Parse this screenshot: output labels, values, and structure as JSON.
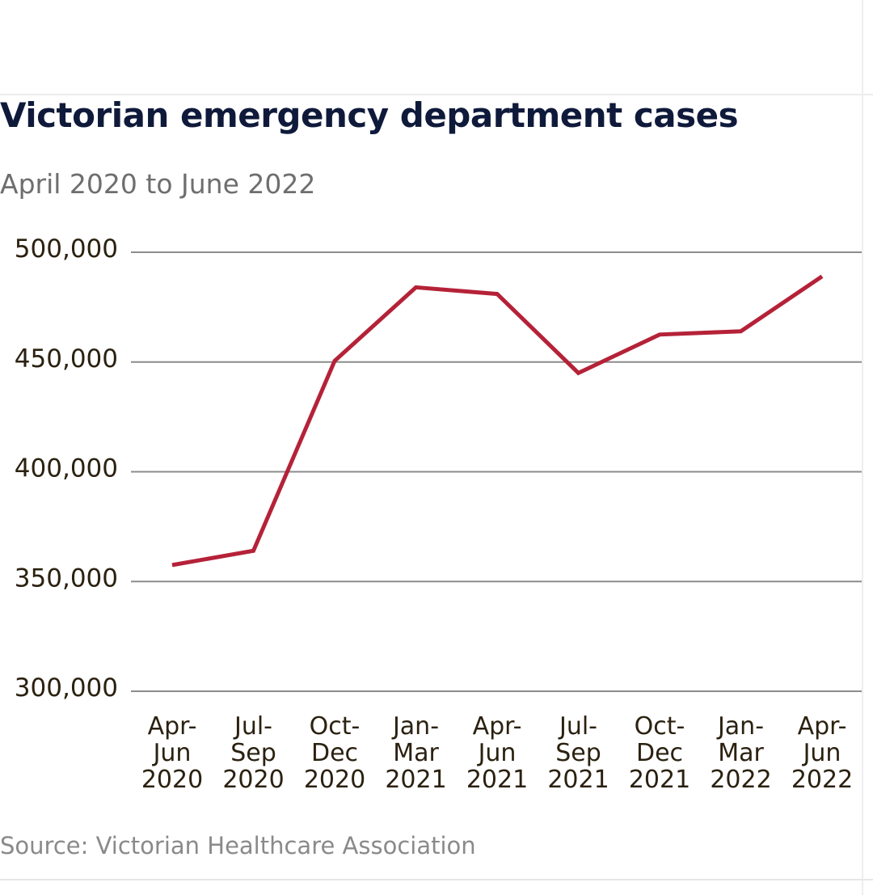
{
  "header": {
    "title": "Victorian emergency department cases",
    "subtitle": "April 2020 to June 2022"
  },
  "footer": {
    "source": "Source: Victorian Healthcare Association"
  },
  "colors": {
    "line": "#b52238",
    "grid": "#8c8c8c",
    "title": "#0f1a3b"
  },
  "chart_data": {
    "type": "line",
    "title": "Victorian emergency department cases",
    "subtitle": "April 2020 to June 2022",
    "xlabel": "",
    "ylabel": "",
    "ylim": [
      300000,
      500000
    ],
    "yticks": [
      500000,
      450000,
      400000,
      350000,
      300000
    ],
    "ytick_labels": [
      "500,000",
      "450,000",
      "400,000",
      "350,000",
      "300,000"
    ],
    "grid": true,
    "legend": "none",
    "categories": [
      [
        "Apr-",
        "Jun",
        "2020"
      ],
      [
        "Jul-",
        "Sep",
        "2020"
      ],
      [
        "Oct-",
        "Dec",
        "2020"
      ],
      [
        "Jan-",
        "Mar",
        "2021"
      ],
      [
        "Apr-",
        "Jun",
        "2021"
      ],
      [
        "Jul-",
        "Sep",
        "2021"
      ],
      [
        "Oct-",
        "Dec",
        "2021"
      ],
      [
        "Jan-",
        "Mar",
        "2022"
      ],
      [
        "Apr-",
        "Jun",
        "2022"
      ]
    ],
    "series": [
      {
        "values": [
          357500,
          364000,
          450500,
          484000,
          481000,
          445000,
          462500,
          464000,
          489000
        ]
      }
    ]
  }
}
